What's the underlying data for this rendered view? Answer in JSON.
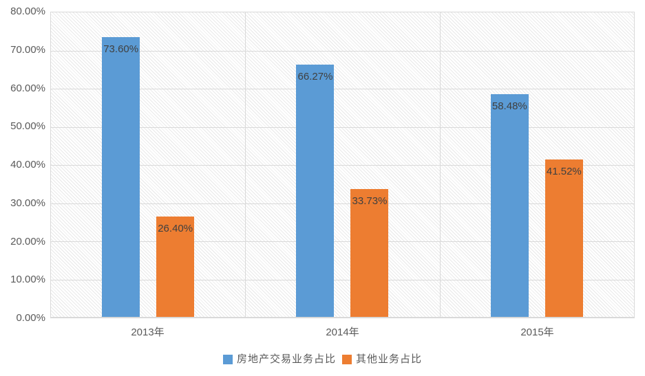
{
  "chart_data": {
    "type": "bar",
    "title": "",
    "categories": [
      "2013年",
      "2014年",
      "2015年"
    ],
    "series": [
      {
        "name": "房地产交易业务占比",
        "color": "#5B9BD5",
        "values": [
          73.6,
          66.27,
          58.48
        ],
        "data_labels": [
          "73.60%",
          "66.27%",
          "58.48%"
        ]
      },
      {
        "name": "其他业务占比",
        "color": "#ED7D31",
        "values": [
          26.4,
          33.73,
          41.52
        ],
        "data_labels": [
          "26.40%",
          "33.73%",
          "41.52%"
        ]
      }
    ],
    "xlabel": "",
    "ylabel": "",
    "ylim": [
      0,
      80
    ],
    "ytick_labels": [
      "80.00%",
      "70.00%",
      "60.00%",
      "50.00%",
      "40.00%",
      "30.00%",
      "20.00%",
      "10.00%",
      "0.00%"
    ],
    "legend_position": "bottom",
    "grid": {
      "horizontal": true,
      "vertical_category_boundaries": true
    },
    "plot_area_fill": "light-diagonal-hatch",
    "styles": {
      "gridline_color": "#d9d9d9",
      "axis_text_color": "#595959",
      "data_label_color": "#404040",
      "background_color": "#ffffff"
    }
  }
}
